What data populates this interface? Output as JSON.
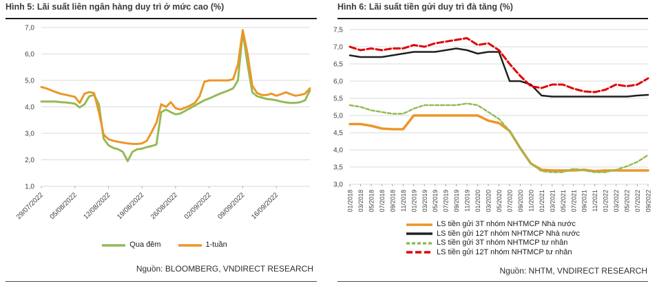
{
  "chart_data": [
    {
      "type": "line",
      "title": "Hình 5: Lãi suất liên ngân hàng duy trì ở mức cao (%)",
      "source": "Nguồn: BLOOMBERG, VNDIRECT RESEARCH",
      "xlabel": "",
      "ylabel": "",
      "ylim": [
        1.0,
        7.0
      ],
      "ytick_step": 1.0,
      "ytick_labels": [
        "7,0",
        "6,0",
        "5,0",
        "4,0",
        "3,0",
        "2,0",
        "1,0"
      ],
      "grid": true,
      "legend_position": "bottom-center",
      "n_points": 57,
      "x_tick_labels": [
        "29/07/2022",
        "05/08/2022",
        "12/08/2022",
        "19/08/2022",
        "26/08/2022",
        "02/09/2022",
        "09/09/2022",
        "16/09/2022"
      ],
      "x_tick_indices": [
        0,
        7,
        14,
        21,
        28,
        35,
        42,
        49
      ],
      "series": [
        {
          "name": "Qua đêm",
          "color": "#94BA55",
          "dash": null,
          "width": 3,
          "values": [
            4.2,
            4.2,
            4.2,
            4.2,
            4.18,
            4.17,
            4.15,
            4.12,
            3.98,
            4.1,
            4.4,
            4.45,
            4.1,
            2.8,
            2.55,
            2.45,
            2.4,
            2.3,
            1.95,
            2.3,
            2.4,
            2.42,
            2.48,
            2.52,
            2.58,
            3.8,
            3.9,
            3.8,
            3.72,
            3.75,
            3.85,
            3.95,
            4.05,
            4.15,
            4.25,
            4.32,
            4.4,
            4.48,
            4.55,
            4.62,
            4.7,
            5.0,
            6.85,
            5.6,
            4.55,
            4.4,
            4.35,
            4.3,
            4.28,
            4.25,
            4.2,
            4.17,
            4.15,
            4.15,
            4.18,
            4.25,
            4.62
          ]
        },
        {
          "name": "1-tuần",
          "color": "#EC9626",
          "dash": null,
          "width": 3,
          "values": [
            4.75,
            4.7,
            4.63,
            4.56,
            4.5,
            4.46,
            4.42,
            4.38,
            4.15,
            4.5,
            4.56,
            4.52,
            3.8,
            2.95,
            2.78,
            2.72,
            2.68,
            2.65,
            2.62,
            2.6,
            2.6,
            2.62,
            2.72,
            3.05,
            3.4,
            4.1,
            4.0,
            4.18,
            3.95,
            3.9,
            3.97,
            4.05,
            4.15,
            4.4,
            4.95,
            5.0,
            5.0,
            5.0,
            5.0,
            5.0,
            5.05,
            5.6,
            6.9,
            6.0,
            4.8,
            4.52,
            4.45,
            4.45,
            4.5,
            4.42,
            4.48,
            4.55,
            4.48,
            4.42,
            4.45,
            4.5,
            4.7
          ]
        }
      ]
    },
    {
      "type": "line",
      "title": "Hình 6: Lãi suất tiền gửi duy trì đà tăng (%)",
      "source": "Nguồn: NHTM, VNDIRECT RESEARCH",
      "xlabel": "",
      "ylabel": "",
      "ylim": [
        3.0,
        7.5
      ],
      "ytick_step": 0.5,
      "ytick_labels": [
        "7,5",
        "7,0",
        "6,5",
        "6,0",
        "5,5",
        "5,0",
        "4,5",
        "4,0",
        "3,5",
        "3,0"
      ],
      "grid": true,
      "legend_position": "bottom-left",
      "categories": [
        "01/2018",
        "03/2018",
        "05/2018",
        "07/2018",
        "09/2018",
        "11/2018",
        "01/2019",
        "03/2019",
        "05/2019",
        "07/2019",
        "09/2019",
        "11/2019",
        "01/2020",
        "03/2020",
        "05/2020",
        "07/2020",
        "09/2020",
        "11/2020",
        "01/2021",
        "03/2021",
        "05/2021",
        "07/2021",
        "09/2021",
        "11/2021",
        "01/2022",
        "03/2022",
        "05/2022",
        "07/2022",
        "09/2022"
      ],
      "series": [
        {
          "name": "LS tiền gửi 3T nhóm NHTMCP Nhà nước",
          "color": "#EC9626",
          "dash": null,
          "width": 3.5,
          "values": [
            4.75,
            4.75,
            4.7,
            4.62,
            4.6,
            4.6,
            5.0,
            5.0,
            5.0,
            5.0,
            5.0,
            5.0,
            5.0,
            4.85,
            4.78,
            4.55,
            4.05,
            3.6,
            3.42,
            3.4,
            3.4,
            3.4,
            3.42,
            3.38,
            3.4,
            3.4,
            3.4,
            3.4,
            3.4
          ]
        },
        {
          "name": "LS tiền gửi 12T nhóm NHTMCP Nhà nước",
          "color": "#1F1F1F",
          "dash": null,
          "width": 2.5,
          "values": [
            6.75,
            6.7,
            6.7,
            6.7,
            6.75,
            6.8,
            6.85,
            6.85,
            6.85,
            6.9,
            6.95,
            6.9,
            6.8,
            6.85,
            6.85,
            6.0,
            6.0,
            5.9,
            5.58,
            5.55,
            5.55,
            5.55,
            5.55,
            5.55,
            5.55,
            5.55,
            5.55,
            5.58,
            5.6
          ]
        },
        {
          "name": "LS tiền gửi 3T nhóm NHTMCP tư nhân",
          "color": "#94BA55",
          "dash": "5,3",
          "width": 2.5,
          "values": [
            5.3,
            5.25,
            5.15,
            5.1,
            5.05,
            5.05,
            5.2,
            5.3,
            5.3,
            5.3,
            5.3,
            5.35,
            5.3,
            5.1,
            4.9,
            4.55,
            4.05,
            3.6,
            3.38,
            3.35,
            3.35,
            3.45,
            3.4,
            3.35,
            3.35,
            3.42,
            3.52,
            3.65,
            3.85
          ]
        },
        {
          "name": "LS tiền gửi 12T nhóm NHTMCP tư nhân",
          "color": "#E00000",
          "dash": "9,4",
          "width": 3,
          "values": [
            7.0,
            6.9,
            6.95,
            6.9,
            6.95,
            6.95,
            7.05,
            7.0,
            7.1,
            7.15,
            7.2,
            7.25,
            7.05,
            7.1,
            6.9,
            6.5,
            6.15,
            5.85,
            5.8,
            5.9,
            5.9,
            5.78,
            5.7,
            5.68,
            5.75,
            5.9,
            5.85,
            5.9,
            6.08
          ]
        }
      ]
    }
  ]
}
